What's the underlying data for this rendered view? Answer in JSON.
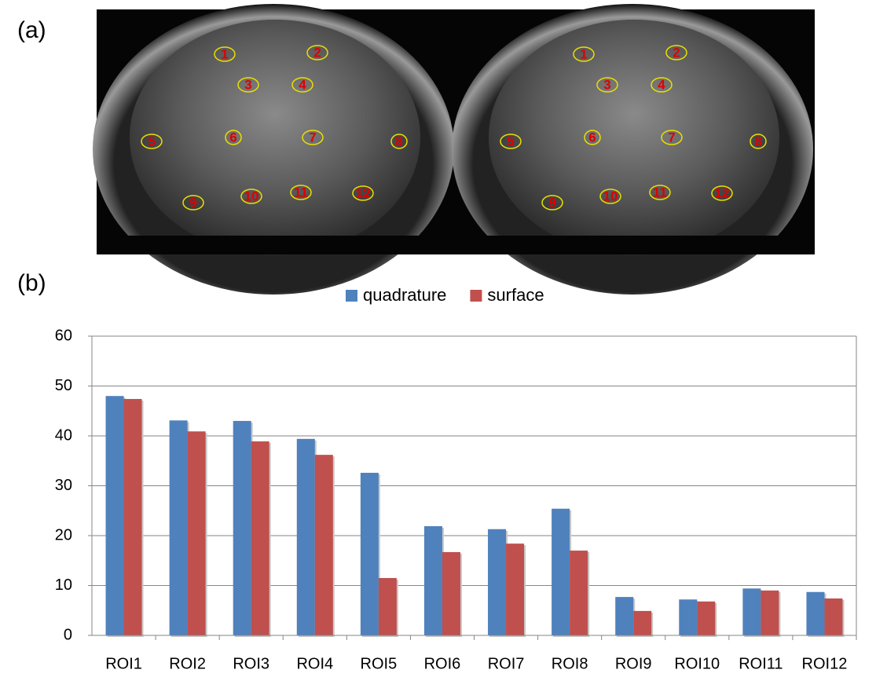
{
  "panel_labels": [
    "(a)",
    "(b)"
  ],
  "image_panels": [
    {
      "roi_labels": [
        "1",
        "2",
        "3",
        "4",
        "5",
        "6",
        "7",
        "8",
        "9",
        "10",
        "11",
        "12"
      ]
    },
    {
      "roi_labels": [
        "1",
        "2",
        "3",
        "4",
        "5",
        "6",
        "7",
        "8",
        "9",
        "10",
        "11",
        "12"
      ]
    }
  ],
  "chart_data": {
    "type": "bar",
    "categories": [
      "ROI1",
      "ROI2",
      "ROI3",
      "ROI4",
      "ROI5",
      "ROI6",
      "ROI7",
      "ROI8",
      "ROI9",
      "ROI10",
      "ROI11",
      "ROI12"
    ],
    "series": [
      {
        "name": "quadrature",
        "color": "#4f81bd",
        "values": [
          48.0,
          43.1,
          43.0,
          39.4,
          32.6,
          21.9,
          21.3,
          25.4,
          7.7,
          7.2,
          9.4,
          8.7
        ]
      },
      {
        "name": "surface",
        "color": "#c0504d",
        "values": [
          47.4,
          40.9,
          38.9,
          36.2,
          11.5,
          16.7,
          18.4,
          17.0,
          4.9,
          6.8,
          9.0,
          7.4
        ]
      }
    ],
    "ylim": [
      0,
      60
    ],
    "yticks": [
      0,
      10,
      20,
      30,
      40,
      50,
      60
    ],
    "grid": true,
    "legend": "top"
  }
}
